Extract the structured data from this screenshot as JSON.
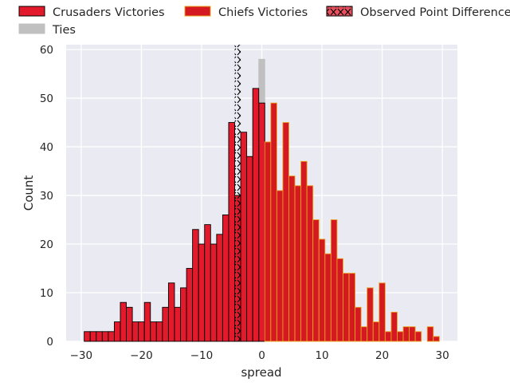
{
  "chart_data": {
    "type": "bar",
    "xlabel": "spread",
    "ylabel": "Count",
    "xlim": [
      -32.5,
      32.5
    ],
    "ylim": [
      0,
      61
    ],
    "xticks": [
      -30,
      -20,
      -10,
      0,
      10,
      20,
      30
    ],
    "yticks": [
      0,
      10,
      20,
      30,
      40,
      50,
      60
    ],
    "grid": true,
    "legend_placement": "top, above plot",
    "legend": [
      {
        "label": "Crusaders Victories",
        "key": "crusaders"
      },
      {
        "label": "Ties",
        "key": "ties"
      },
      {
        "label": "Chiefs Victories",
        "key": "chiefs"
      },
      {
        "label": "Observed Point Difference",
        "key": "observed"
      }
    ],
    "colors": {
      "crusaders": "#e31a2b",
      "crusaders_edge": "#000000",
      "chiefs": "#d41920",
      "chiefs_edge": "#e8a020",
      "ties": "#c0c0c0",
      "observed": "#e8505e",
      "background": "#eaeaf2",
      "grid": "#ffffff"
    },
    "series": [
      {
        "name": "Crusaders Victories",
        "x": [
          -29,
          -28,
          -27,
          -26,
          -25,
          -24,
          -23,
          -22,
          -21,
          -20,
          -19,
          -18,
          -17,
          -16,
          -15,
          -14,
          -13,
          -12,
          -11,
          -10,
          -9,
          -8,
          -7,
          -6,
          -5,
          -4,
          -3,
          -2,
          -1
        ],
        "values": [
          2,
          2,
          2,
          2,
          2,
          4,
          8,
          7,
          4,
          4,
          8,
          4,
          4,
          7,
          12,
          7,
          11,
          15,
          23,
          20,
          24,
          20,
          22,
          26,
          45,
          30,
          43,
          38,
          52
        ]
      },
      {
        "name": "Crusaders Victories",
        "x": [
          0
        ],
        "values": [
          49
        ]
      },
      {
        "name": "Ties",
        "x": [
          0
        ],
        "values": [
          58
        ]
      },
      {
        "name": "Chiefs Victories",
        "x": [
          1,
          2,
          3,
          4,
          5,
          6,
          7,
          8,
          9,
          10,
          11,
          12,
          13,
          14,
          15,
          16,
          17,
          18,
          19,
          20,
          21,
          22,
          23,
          24,
          25,
          26,
          27,
          28,
          29
        ],
        "values": [
          41,
          49,
          31,
          45,
          34,
          32,
          37,
          32,
          25,
          21,
          18,
          25,
          17,
          14,
          14,
          7,
          3,
          11,
          4,
          12,
          2,
          6,
          2,
          3,
          3,
          2,
          0,
          3,
          1
        ]
      }
    ],
    "observed_point_difference": -4
  }
}
